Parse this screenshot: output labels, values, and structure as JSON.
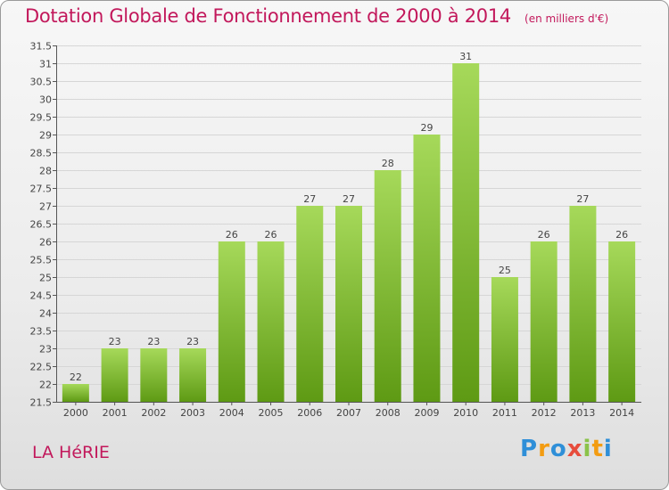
{
  "chart_data": {
    "type": "bar",
    "title": "Dotation Globale de Fonctionnement de 2000 à 2014",
    "unit": "(en milliers d'€)",
    "categories": [
      "2000",
      "2001",
      "2002",
      "2003",
      "2004",
      "2005",
      "2006",
      "2007",
      "2008",
      "2009",
      "2010",
      "2011",
      "2012",
      "2013",
      "2014"
    ],
    "values": [
      22,
      23,
      23,
      23,
      26,
      26,
      27,
      27,
      28,
      29,
      31,
      25,
      26,
      27,
      26
    ],
    "value_labels": [
      "22",
      "23",
      "23",
      "23",
      "26",
      "26",
      "27",
      "27",
      "28",
      "29",
      "31",
      "25",
      "26",
      "27",
      "26"
    ],
    "ylim": [
      21.5,
      31.5
    ],
    "yticks": [
      "21.5",
      "22",
      "22.5",
      "23",
      "23.5",
      "24",
      "24.5",
      "25",
      "25.5",
      "26",
      "26.5",
      "27",
      "27.5",
      "28",
      "28.5",
      "29",
      "29.5",
      "30",
      "30.5",
      "31",
      "31.5"
    ],
    "grid": true,
    "colors": {
      "bar_top": "#a6d95a",
      "bar_bottom": "#5e9a14",
      "title": "#c2185b",
      "axis": "#555555"
    }
  },
  "commune": "LA HéRIE",
  "logo": {
    "text": "Proxiti",
    "letters": [
      "P",
      "r",
      "o",
      "x",
      "i",
      "t",
      "i"
    ],
    "colors": [
      "#2f8fd8",
      "#f39c12",
      "#2f8fd8",
      "#e74c3c",
      "#8bc34a",
      "#f39c12",
      "#2f8fd8"
    ]
  }
}
